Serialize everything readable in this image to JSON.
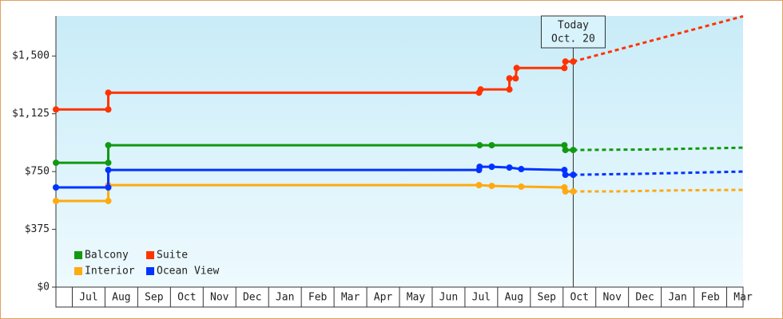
{
  "chart_data": {
    "type": "line",
    "step_points": true,
    "xlim": [
      -0.5,
      20.5
    ],
    "ylim": [
      0,
      1760
    ],
    "xticks": [
      {
        "value": 0.5,
        "label": "Jul"
      },
      {
        "value": 1.5,
        "label": "Aug"
      },
      {
        "value": 2.5,
        "label": "Sep"
      },
      {
        "value": 3.5,
        "label": "Oct"
      },
      {
        "value": 4.5,
        "label": "Nov"
      },
      {
        "value": 5.5,
        "label": "Dec"
      },
      {
        "value": 6.5,
        "label": "Jan"
      },
      {
        "value": 7.5,
        "label": "Feb"
      },
      {
        "value": 8.5,
        "label": "Mar"
      },
      {
        "value": 9.5,
        "label": "Apr"
      },
      {
        "value": 10.5,
        "label": "May"
      },
      {
        "value": 11.5,
        "label": "Jun"
      },
      {
        "value": 12.5,
        "label": "Jul"
      },
      {
        "value": 13.5,
        "label": "Aug"
      },
      {
        "value": 14.5,
        "label": "Sep"
      },
      {
        "value": 15.5,
        "label": "Oct"
      },
      {
        "value": 16.5,
        "label": "Nov"
      },
      {
        "value": 17.5,
        "label": "Dec"
      },
      {
        "value": 18.5,
        "label": "Jan"
      },
      {
        "value": 19.5,
        "label": "Feb"
      },
      {
        "value": 20.5,
        "label": "Mar"
      }
    ],
    "yticks": [
      {
        "value": 0,
        "label": "$0"
      },
      {
        "value": 375,
        "label": "$375"
      },
      {
        "value": 750,
        "label": "$750"
      },
      {
        "value": 1125,
        "label": "$1,125"
      },
      {
        "value": 1500,
        "label": "$1,500"
      }
    ],
    "annotation": {
      "x": 15.31,
      "lines": [
        "Today",
        "Oct. 20"
      ]
    },
    "series": [
      {
        "name": "Balcony",
        "color": "#119911",
        "x": [
          -0.5,
          1.1,
          1.1,
          12.45,
          12.82,
          15.04,
          15.07,
          15.31
        ],
        "values": [
          807,
          807,
          921,
          921,
          921,
          921,
          890,
          890
        ],
        "forecast_x": [
          15.31,
          17.5,
          20.5
        ],
        "forecast_values": [
          890,
          893,
          905
        ]
      },
      {
        "name": "Suite",
        "color": "#ff3300",
        "x": [
          -0.5,
          1.1,
          1.1,
          12.43,
          12.48,
          13.36,
          13.36,
          13.55,
          13.58,
          15.04,
          15.07,
          15.31
        ],
        "values": [
          1153,
          1153,
          1262,
          1262,
          1283,
          1283,
          1355,
          1355,
          1422,
          1422,
          1464,
          1464
        ],
        "forecast_x": [
          15.31,
          20.5
        ],
        "forecast_values": [
          1464,
          1758
        ]
      },
      {
        "name": "Interior",
        "color": "#ffaa11",
        "x": [
          -0.5,
          1.1,
          1.1,
          12.43,
          12.82,
          13.72,
          15.04,
          15.07,
          15.31
        ],
        "values": [
          559,
          559,
          662,
          662,
          657,
          652,
          647,
          621,
          621
        ],
        "forecast_x": [
          15.31,
          16.6,
          18.5,
          20.5
        ],
        "forecast_values": [
          621,
          621,
          628,
          631
        ]
      },
      {
        "name": "Ocean View",
        "color": "#0033ff",
        "x": [
          -0.5,
          1.1,
          1.1,
          12.43,
          12.45,
          12.82,
          13.36,
          13.72,
          15.04,
          15.07,
          15.31
        ],
        "values": [
          647,
          647,
          760,
          760,
          781,
          781,
          776,
          766,
          760,
          729,
          729
        ],
        "forecast_x": [
          15.31,
          17.5,
          20.5
        ],
        "forecast_values": [
          729,
          736,
          750
        ]
      }
    ]
  }
}
